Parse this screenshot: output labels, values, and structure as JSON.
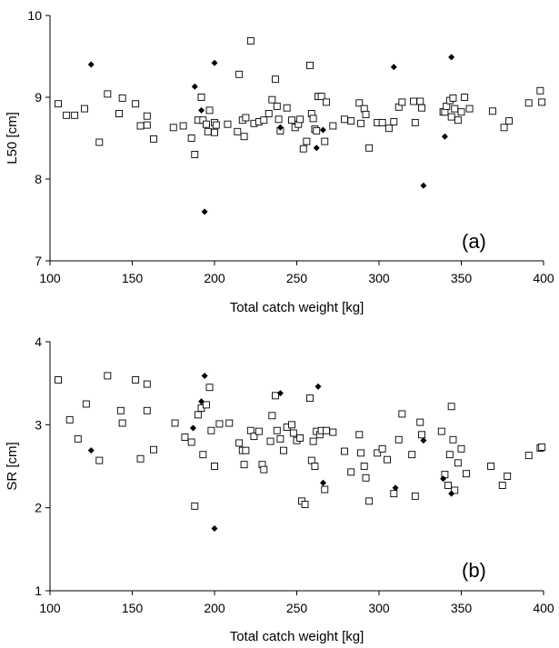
{
  "chart_data": [
    {
      "type": "scatter",
      "panel_label": "(a)",
      "xlabel": "Total catch weight [kg]",
      "ylabel": "L50 [cm]",
      "xlim": [
        100,
        400
      ],
      "ylim": [
        7,
        10
      ],
      "xticks": [
        100,
        150,
        200,
        250,
        300,
        350,
        400
      ],
      "yticks": [
        7,
        8,
        9,
        10
      ],
      "grid": false,
      "series": [
        {
          "marker": "open-square",
          "points": [
            [
              105,
              8.92
            ],
            [
              110,
              8.78
            ],
            [
              115,
              8.78
            ],
            [
              121,
              8.86
            ],
            [
              130,
              8.45
            ],
            [
              135,
              9.04
            ],
            [
              142,
              8.8
            ],
            [
              144,
              8.99
            ],
            [
              152,
              8.92
            ],
            [
              155,
              8.65
            ],
            [
              159,
              8.77
            ],
            [
              159,
              8.66
            ],
            [
              163,
              8.49
            ],
            [
              175,
              8.63
            ],
            [
              181,
              8.65
            ],
            [
              186,
              8.5
            ],
            [
              188,
              8.3
            ],
            [
              190,
              8.72
            ],
            [
              192,
              9.0
            ],
            [
              193,
              8.72
            ],
            [
              195,
              8.67
            ],
            [
              196,
              8.58
            ],
            [
              197,
              8.84
            ],
            [
              200,
              8.69
            ],
            [
              200,
              8.57
            ],
            [
              201,
              8.66
            ],
            [
              208,
              8.67
            ],
            [
              214,
              8.58
            ],
            [
              215,
              9.28
            ],
            [
              217,
              8.72
            ],
            [
              218,
              8.52
            ],
            [
              219,
              8.75
            ],
            [
              222,
              9.69
            ],
            [
              224,
              8.68
            ],
            [
              227,
              8.7
            ],
            [
              230,
              8.72
            ],
            [
              233,
              8.8
            ],
            [
              235,
              8.97
            ],
            [
              237,
              9.22
            ],
            [
              238,
              8.89
            ],
            [
              239,
              8.73
            ],
            [
              240,
              8.59
            ],
            [
              244,
              8.87
            ],
            [
              247,
              8.72
            ],
            [
              249,
              8.63
            ],
            [
              251,
              8.67
            ],
            [
              252,
              8.73
            ],
            [
              254,
              8.37
            ],
            [
              256,
              8.46
            ],
            [
              258,
              9.39
            ],
            [
              259,
              8.8
            ],
            [
              260,
              8.74
            ],
            [
              261,
              8.61
            ],
            [
              262,
              8.59
            ],
            [
              263,
              9.01
            ],
            [
              265,
              9.01
            ],
            [
              267,
              8.46
            ],
            [
              268,
              8.94
            ],
            [
              272,
              8.65
            ],
            [
              279,
              8.73
            ],
            [
              283,
              8.71
            ],
            [
              288,
              8.93
            ],
            [
              289,
              8.68
            ],
            [
              291,
              8.86
            ],
            [
              292,
              8.79
            ],
            [
              294,
              8.38
            ],
            [
              299,
              8.69
            ],
            [
              302,
              8.69
            ],
            [
              306,
              8.62
            ],
            [
              309,
              8.7
            ],
            [
              312,
              8.88
            ],
            [
              314,
              8.94
            ],
            [
              321,
              8.95
            ],
            [
              322,
              8.69
            ],
            [
              325,
              8.95
            ],
            [
              326,
              8.87
            ],
            [
              339,
              8.82
            ],
            [
              340,
              8.82
            ],
            [
              341,
              8.89
            ],
            [
              343,
              8.96
            ],
            [
              344,
              8.76
            ],
            [
              345,
              8.99
            ],
            [
              346,
              8.86
            ],
            [
              348,
              8.72
            ],
            [
              350,
              8.82
            ],
            [
              352,
              9.0
            ],
            [
              355,
              8.86
            ],
            [
              369,
              8.83
            ],
            [
              376,
              8.63
            ],
            [
              379,
              8.71
            ],
            [
              391,
              8.93
            ],
            [
              398,
              9.08
            ],
            [
              399,
              8.94
            ]
          ]
        },
        {
          "marker": "filled-diamond",
          "points": [
            [
              125,
              9.4
            ],
            [
              188,
              9.13
            ],
            [
              192,
              8.84
            ],
            [
              194,
              7.6
            ],
            [
              200,
              9.42
            ],
            [
              240,
              8.63
            ],
            [
              262,
              8.38
            ],
            [
              266,
              8.6
            ],
            [
              309,
              9.37
            ],
            [
              327,
              7.92
            ],
            [
              340,
              8.52
            ],
            [
              344,
              9.49
            ]
          ]
        }
      ]
    },
    {
      "type": "scatter",
      "panel_label": "(b)",
      "xlabel": "Total catch weight [kg]",
      "ylabel": "SR [cm]",
      "xlim": [
        100,
        400
      ],
      "ylim": [
        1,
        4
      ],
      "xticks": [
        100,
        150,
        200,
        250,
        300,
        350,
        400
      ],
      "yticks": [
        1,
        2,
        3,
        4
      ],
      "grid": false,
      "series": [
        {
          "marker": "open-square",
          "points": [
            [
              105,
              3.54
            ],
            [
              112,
              3.06
            ],
            [
              117,
              2.83
            ],
            [
              122,
              3.25
            ],
            [
              130,
              2.57
            ],
            [
              135,
              3.59
            ],
            [
              143,
              3.17
            ],
            [
              144,
              3.02
            ],
            [
              152,
              3.54
            ],
            [
              155,
              2.59
            ],
            [
              159,
              3.49
            ],
            [
              159,
              3.17
            ],
            [
              163,
              2.7
            ],
            [
              176,
              3.02
            ],
            [
              182,
              2.85
            ],
            [
              186,
              2.79
            ],
            [
              188,
              2.02
            ],
            [
              190,
              3.12
            ],
            [
              192,
              3.2
            ],
            [
              193,
              2.64
            ],
            [
              195,
              3.24
            ],
            [
              197,
              3.45
            ],
            [
              198,
              2.93
            ],
            [
              200,
              2.5
            ],
            [
              203,
              3.01
            ],
            [
              209,
              3.02
            ],
            [
              215,
              2.78
            ],
            [
              217,
              2.69
            ],
            [
              218,
              2.52
            ],
            [
              219,
              2.69
            ],
            [
              222,
              2.93
            ],
            [
              224,
              2.86
            ],
            [
              227,
              2.92
            ],
            [
              229,
              2.52
            ],
            [
              230,
              2.46
            ],
            [
              234,
              2.8
            ],
            [
              235,
              3.11
            ],
            [
              237,
              3.35
            ],
            [
              238,
              2.93
            ],
            [
              240,
              2.83
            ],
            [
              242,
              2.69
            ],
            [
              244,
              2.97
            ],
            [
              247,
              3.0
            ],
            [
              248,
              2.9
            ],
            [
              250,
              2.81
            ],
            [
              252,
              2.84
            ],
            [
              253,
              2.08
            ],
            [
              255,
              2.04
            ],
            [
              258,
              3.32
            ],
            [
              259,
              2.57
            ],
            [
              260,
              2.8
            ],
            [
              261,
              2.5
            ],
            [
              262,
              2.92
            ],
            [
              264,
              2.88
            ],
            [
              265,
              2.93
            ],
            [
              267,
              2.22
            ],
            [
              268,
              2.93
            ],
            [
              272,
              2.91
            ],
            [
              279,
              2.68
            ],
            [
              283,
              2.43
            ],
            [
              288,
              2.88
            ],
            [
              289,
              2.66
            ],
            [
              291,
              2.5
            ],
            [
              292,
              2.36
            ],
            [
              294,
              2.08
            ],
            [
              299,
              2.66
            ],
            [
              302,
              2.71
            ],
            [
              305,
              2.58
            ],
            [
              309,
              2.17
            ],
            [
              312,
              2.82
            ],
            [
              314,
              3.13
            ],
            [
              320,
              2.64
            ],
            [
              322,
              2.14
            ],
            [
              325,
              3.03
            ],
            [
              326,
              2.88
            ],
            [
              338,
              2.92
            ],
            [
              340,
              2.4
            ],
            [
              342,
              2.27
            ],
            [
              343,
              2.64
            ],
            [
              344,
              3.22
            ],
            [
              345,
              2.82
            ],
            [
              346,
              2.21
            ],
            [
              348,
              2.54
            ],
            [
              350,
              2.71
            ],
            [
              353,
              2.41
            ],
            [
              368,
              2.5
            ],
            [
              375,
              2.27
            ],
            [
              378,
              2.38
            ],
            [
              391,
              2.63
            ],
            [
              398,
              2.72
            ],
            [
              399,
              2.73
            ]
          ]
        },
        {
          "marker": "filled-diamond",
          "points": [
            [
              125,
              2.69
            ],
            [
              187,
              2.96
            ],
            [
              192,
              3.28
            ],
            [
              194,
              3.59
            ],
            [
              200,
              1.75
            ],
            [
              240,
              3.38
            ],
            [
              263,
              3.46
            ],
            [
              266,
              2.3
            ],
            [
              310,
              2.24
            ],
            [
              327,
              2.81
            ],
            [
              339,
              2.35
            ],
            [
              344,
              2.17
            ]
          ]
        }
      ]
    }
  ]
}
